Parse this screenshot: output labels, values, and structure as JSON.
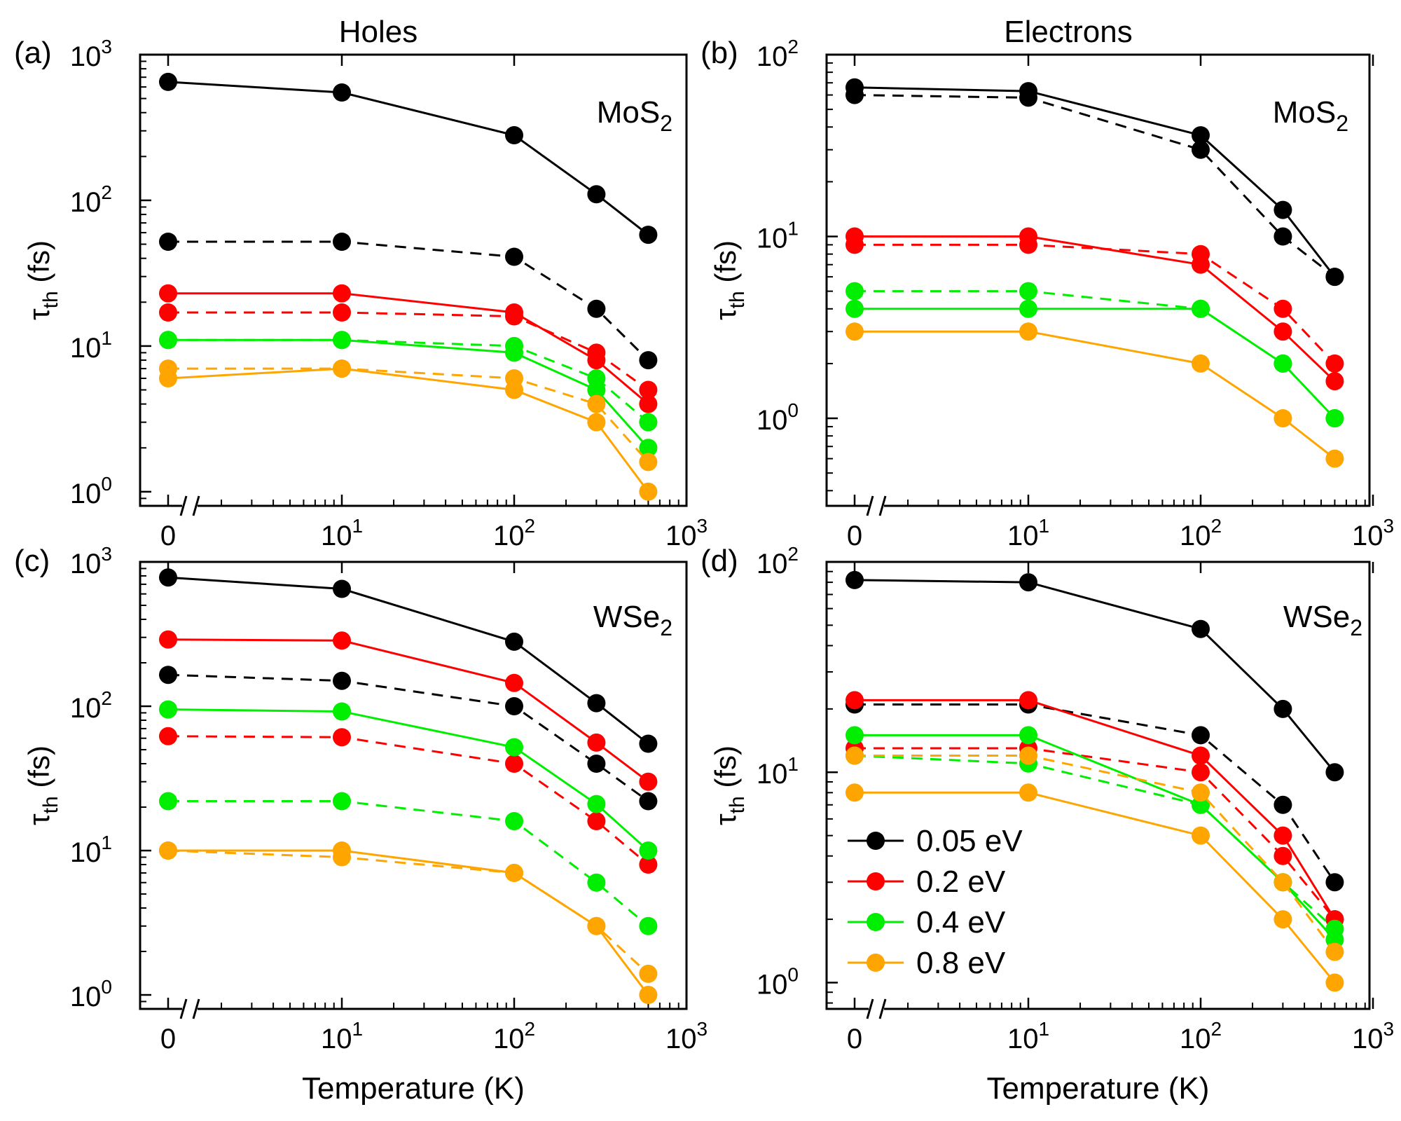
{
  "figure": {
    "column_titles": [
      "Holes",
      "Electrons"
    ],
    "legend": [
      {
        "label": "0.05 eV",
        "color": "#000000"
      },
      {
        "label": "0.2 eV",
        "color": "#ff0000"
      },
      {
        "label": "0.4 eV",
        "color": "#00ee00"
      },
      {
        "label": "0.8 eV",
        "color": "#ffa500"
      }
    ]
  },
  "chart_data": [
    {
      "type": "line",
      "panel": "(a)",
      "material": "MoS",
      "material_sub": "2",
      "xlabel": "Temperature (K)",
      "ylabel": "τ",
      "ylabel_sub": "th",
      "ylabel_unit": " (fs)",
      "x_scale": "log with broken axis at T=0",
      "x": [
        0,
        10,
        100,
        300,
        600
      ],
      "x_ticks": [
        {
          "base": "0",
          "exp": ""
        },
        {
          "base": "10",
          "exp": "1"
        },
        {
          "base": "10",
          "exp": "2"
        },
        {
          "base": "10",
          "exp": "3"
        }
      ],
      "y_scale": "log",
      "ylim": [
        0.8,
        1000
      ],
      "y_ticks": [
        {
          "base": "10",
          "exp": "0",
          "value": 1
        },
        {
          "base": "10",
          "exp": "1",
          "value": 10
        },
        {
          "base": "10",
          "exp": "2",
          "value": 100
        },
        {
          "base": "10",
          "exp": "3",
          "value": 1000
        }
      ],
      "series": [
        {
          "name": "0.05 eV",
          "style": "solid",
          "color": "#000000",
          "values": [
            650,
            550,
            280,
            110,
            58
          ]
        },
        {
          "name": "0.05 eV",
          "style": "dashed",
          "color": "#000000",
          "values": [
            52,
            52,
            41,
            18,
            8
          ]
        },
        {
          "name": "0.2 eV",
          "style": "solid",
          "color": "#ff0000",
          "values": [
            23,
            23,
            17,
            8,
            4
          ]
        },
        {
          "name": "0.2 eV",
          "style": "dashed",
          "color": "#ff0000",
          "values": [
            17,
            17,
            16,
            9,
            5
          ]
        },
        {
          "name": "0.4 eV",
          "style": "solid",
          "color": "#00ee00",
          "values": [
            11,
            11,
            9,
            5,
            2
          ]
        },
        {
          "name": "0.4 eV",
          "style": "dashed",
          "color": "#00ee00",
          "values": [
            11,
            11,
            10,
            6,
            3
          ]
        },
        {
          "name": "0.8 eV",
          "style": "solid",
          "color": "#ffa500",
          "values": [
            6,
            7,
            5,
            3,
            1
          ]
        },
        {
          "name": "0.8 eV",
          "style": "dashed",
          "color": "#ffa500",
          "values": [
            7,
            7,
            6,
            4,
            1.6
          ]
        }
      ]
    },
    {
      "type": "line",
      "panel": "(b)",
      "material": "MoS",
      "material_sub": "2",
      "xlabel": "Temperature (K)",
      "ylabel": "τ",
      "ylabel_sub": "th",
      "ylabel_unit": " (fs)",
      "x_scale": "log with broken axis at T=0",
      "x": [
        0,
        10,
        100,
        300,
        600
      ],
      "x_ticks": [
        {
          "base": "0",
          "exp": ""
        },
        {
          "base": "10",
          "exp": "1"
        },
        {
          "base": "10",
          "exp": "2"
        },
        {
          "base": "10",
          "exp": "3"
        }
      ],
      "y_scale": "log",
      "ylim": [
        0.33,
        100
      ],
      "y_ticks": [
        {
          "base": "10",
          "exp": "0",
          "value": 1
        },
        {
          "base": "10",
          "exp": "1",
          "value": 10
        },
        {
          "base": "10",
          "exp": "2",
          "value": 100
        }
      ],
      "series": [
        {
          "name": "0.05 eV",
          "style": "solid",
          "color": "#000000",
          "values": [
            66,
            63,
            36,
            14,
            6
          ]
        },
        {
          "name": "0.05 eV",
          "style": "dashed",
          "color": "#000000",
          "values": [
            60,
            58,
            30,
            10,
            6
          ]
        },
        {
          "name": "0.2 eV",
          "style": "solid",
          "color": "#ff0000",
          "values": [
            10,
            10,
            7,
            3,
            1.6
          ]
        },
        {
          "name": "0.2 eV",
          "style": "dashed",
          "color": "#ff0000",
          "values": [
            9,
            9,
            8,
            4,
            2
          ]
        },
        {
          "name": "0.4 eV",
          "style": "solid",
          "color": "#00ee00",
          "values": [
            4,
            4,
            4,
            2,
            1
          ]
        },
        {
          "name": "0.4 eV",
          "style": "dashed",
          "color": "#00ee00",
          "values": [
            5,
            5,
            4,
            2,
            1
          ]
        },
        {
          "name": "0.8 eV",
          "style": "solid",
          "color": "#ffa500",
          "values": [
            3,
            3,
            2,
            1,
            0.6
          ]
        }
      ]
    },
    {
      "type": "line",
      "panel": "(c)",
      "material": "WSe",
      "material_sub": "2",
      "xlabel": "Temperature (K)",
      "ylabel": "τ",
      "ylabel_sub": "th",
      "ylabel_unit": " (fs)",
      "x_scale": "log with broken axis at T=0",
      "x": [
        0,
        10,
        100,
        300,
        600
      ],
      "x_ticks": [
        {
          "base": "0",
          "exp": ""
        },
        {
          "base": "10",
          "exp": "1"
        },
        {
          "base": "10",
          "exp": "2"
        },
        {
          "base": "10",
          "exp": "3"
        }
      ],
      "y_scale": "log",
      "ylim": [
        0.8,
        1000
      ],
      "y_ticks": [
        {
          "base": "10",
          "exp": "0",
          "value": 1
        },
        {
          "base": "10",
          "exp": "1",
          "value": 10
        },
        {
          "base": "10",
          "exp": "2",
          "value": 100
        },
        {
          "base": "10",
          "exp": "3",
          "value": 1000
        }
      ],
      "series": [
        {
          "name": "0.05 eV",
          "style": "solid",
          "color": "#000000",
          "values": [
            780,
            650,
            280,
            105,
            55
          ]
        },
        {
          "name": "0.05 eV",
          "style": "dashed",
          "color": "#000000",
          "values": [
            165,
            150,
            100,
            40,
            22
          ]
        },
        {
          "name": "0.2 eV",
          "style": "solid",
          "color": "#ff0000",
          "values": [
            290,
            285,
            145,
            56,
            30
          ]
        },
        {
          "name": "0.2 eV",
          "style": "dashed",
          "color": "#ff0000",
          "values": [
            62,
            61,
            40,
            16,
            8
          ]
        },
        {
          "name": "0.4 eV",
          "style": "solid",
          "color": "#00ee00",
          "values": [
            95,
            92,
            52,
            21,
            10
          ]
        },
        {
          "name": "0.4 eV",
          "style": "dashed",
          "color": "#00ee00",
          "values": [
            22,
            22,
            16,
            6,
            3
          ]
        },
        {
          "name": "0.8 eV",
          "style": "solid",
          "color": "#ffa500",
          "values": [
            10,
            10,
            7,
            3,
            1
          ]
        },
        {
          "name": "0.8 eV",
          "style": "dashed",
          "color": "#ffa500",
          "values": [
            10,
            9,
            7,
            3,
            1.4
          ]
        }
      ]
    },
    {
      "type": "line",
      "panel": "(d)",
      "material": "WSe",
      "material_sub": "2",
      "xlabel": "Temperature (K)",
      "ylabel": "τ",
      "ylabel_sub": "th",
      "ylabel_unit": " (fs)",
      "x_scale": "log with broken axis at T=0",
      "x": [
        0,
        10,
        100,
        300,
        600
      ],
      "x_ticks": [
        {
          "base": "0",
          "exp": ""
        },
        {
          "base": "10",
          "exp": "1"
        },
        {
          "base": "10",
          "exp": "2"
        },
        {
          "base": "10",
          "exp": "3"
        }
      ],
      "y_scale": "log",
      "ylim": [
        0.75,
        100
      ],
      "y_ticks": [
        {
          "base": "10",
          "exp": "0",
          "value": 1
        },
        {
          "base": "10",
          "exp": "1",
          "value": 10
        },
        {
          "base": "10",
          "exp": "2",
          "value": 100
        }
      ],
      "series": [
        {
          "name": "0.05 eV",
          "style": "solid",
          "color": "#000000",
          "values": [
            82,
            80,
            48,
            20,
            10
          ]
        },
        {
          "name": "0.05 eV",
          "style": "dashed",
          "color": "#000000",
          "values": [
            21,
            21,
            15,
            7,
            3
          ]
        },
        {
          "name": "0.2 eV",
          "style": "solid",
          "color": "#ff0000",
          "values": [
            22,
            22,
            12,
            5,
            2
          ]
        },
        {
          "name": "0.2 eV",
          "style": "dashed",
          "color": "#ff0000",
          "values": [
            13,
            13,
            10,
            4,
            2
          ]
        },
        {
          "name": "0.4 eV",
          "style": "solid",
          "color": "#00ee00",
          "values": [
            15,
            15,
            7,
            3,
            1.6
          ]
        },
        {
          "name": "0.4 eV",
          "style": "dashed",
          "color": "#00ee00",
          "values": [
            12,
            11,
            7,
            3,
            1.8
          ]
        },
        {
          "name": "0.8 eV",
          "style": "solid",
          "color": "#ffa500",
          "values": [
            8,
            8,
            5,
            2,
            1
          ]
        },
        {
          "name": "0.8 eV",
          "style": "dashed",
          "color": "#ffa500",
          "values": [
            12,
            12,
            8,
            3,
            1.4
          ]
        }
      ],
      "legend_position": "lower-left"
    }
  ]
}
